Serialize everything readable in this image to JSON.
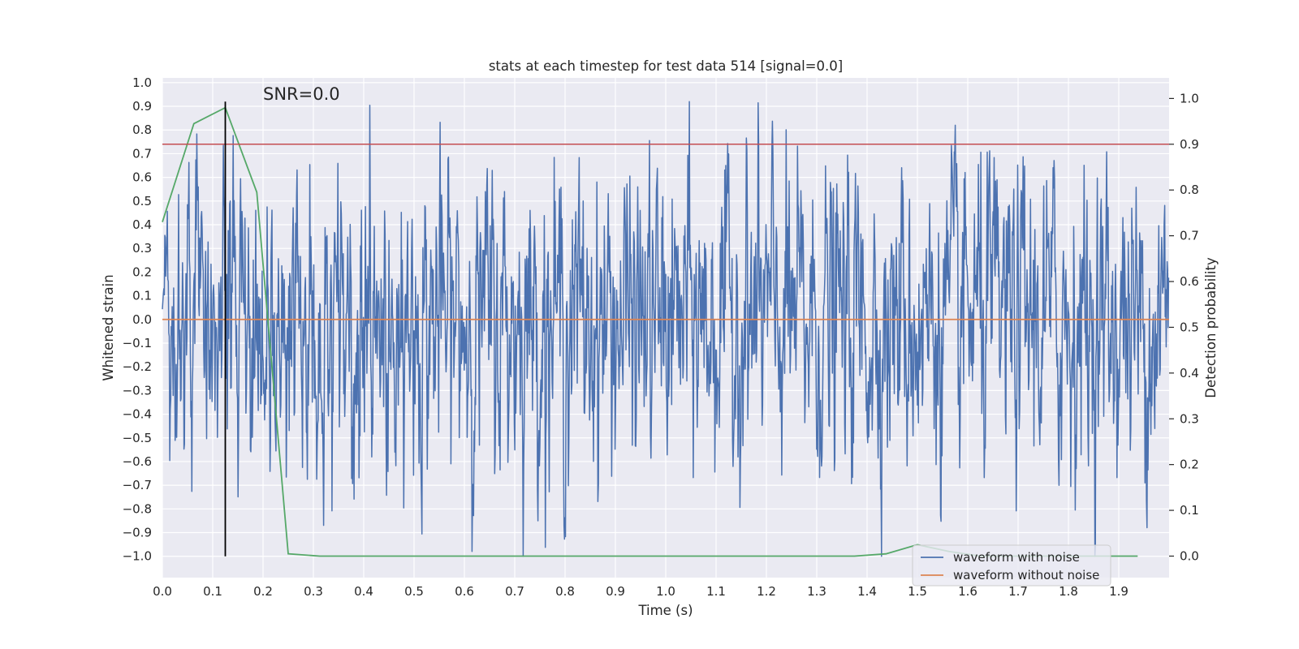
{
  "chart_data": {
    "type": "line",
    "title": "stats at each timestep for test data 514 [signal=0.0]",
    "xlabel": "Time (s)",
    "ylabel": "Whitened strain",
    "y2label": "Detection probability",
    "xlim": [
      0.0,
      2.0
    ],
    "ylim": [
      -1.09,
      1.02
    ],
    "y2lim": [
      -0.047,
      1.045
    ],
    "xticks": [
      "0.0",
      "0.1",
      "0.2",
      "0.3",
      "0.4",
      "0.5",
      "0.6",
      "0.7",
      "0.8",
      "0.9",
      "1.0",
      "1.1",
      "1.2",
      "1.3",
      "1.4",
      "1.5",
      "1.6",
      "1.7",
      "1.8",
      "1.9"
    ],
    "yticks": [
      "1.0",
      "0.9",
      "0.8",
      "0.7",
      "0.6",
      "0.5",
      "0.4",
      "0.3",
      "0.2",
      "0.1",
      "0.0",
      "−0.1",
      "−0.2",
      "−0.3",
      "−0.4",
      "−0.5",
      "−0.6",
      "−0.7",
      "−0.8",
      "−0.9",
      "−1.0"
    ],
    "y2ticks": [
      "1.0",
      "0.9",
      "0.8",
      "0.7",
      "0.6",
      "0.5",
      "0.4",
      "0.3",
      "0.2",
      "0.1",
      "0.0"
    ],
    "grid": true,
    "legend_position": "lower-right",
    "annotation": "SNR=0.0",
    "colors": {
      "waveform_with_noise": "#4c72b0",
      "waveform_without_noise": "#dd8452",
      "detection_probability": "#55a868",
      "threshold": "#c44e52",
      "marker": "#000000",
      "plot_background": "#eaeaf2",
      "grid": "#ffffff"
    },
    "series": [
      {
        "name": "waveform with noise",
        "axis": "left",
        "description_of_values": "dense noise, samples within about -1.0 to 0.92",
        "sample_count": 2048,
        "value_range": [
          -1.0,
          0.92
        ]
      },
      {
        "name": "waveform without noise",
        "axis": "left",
        "x": [
          0.0,
          2.0
        ],
        "y": [
          0.0,
          0.0
        ]
      },
      {
        "axis": "right",
        "x": [
          0.0,
          0.0625,
          0.125,
          0.1875,
          0.25,
          0.3125,
          0.375,
          0.4375,
          0.5,
          0.5625,
          0.625,
          0.6875,
          0.75,
          0.8125,
          0.875,
          0.9375,
          1.0,
          1.0625,
          1.125,
          1.1875,
          1.25,
          1.3125,
          1.375,
          1.4375,
          1.5,
          1.5625,
          1.625,
          1.6875,
          1.75,
          1.8125,
          1.875,
          1.9375
        ],
        "y": [
          0.73,
          0.945,
          0.98,
          0.795,
          0.005,
          0.0,
          0.0,
          0.0,
          0.0,
          0.0,
          0.0,
          0.0,
          0.0,
          0.0,
          0.0,
          0.0,
          0.0,
          0.0,
          0.0,
          0.0,
          0.0,
          0.0,
          0.0,
          0.005,
          0.025,
          0.01,
          0.0,
          0.0,
          0.0,
          0.0,
          0.0,
          0.0
        ]
      },
      {
        "axis": "right",
        "y": 0.9
      },
      {
        "axis": "left",
        "x": 0.125,
        "y": [
          -1.0,
          0.92
        ]
      }
    ],
    "legend": [
      "waveform with noise",
      "waveform without noise"
    ]
  }
}
